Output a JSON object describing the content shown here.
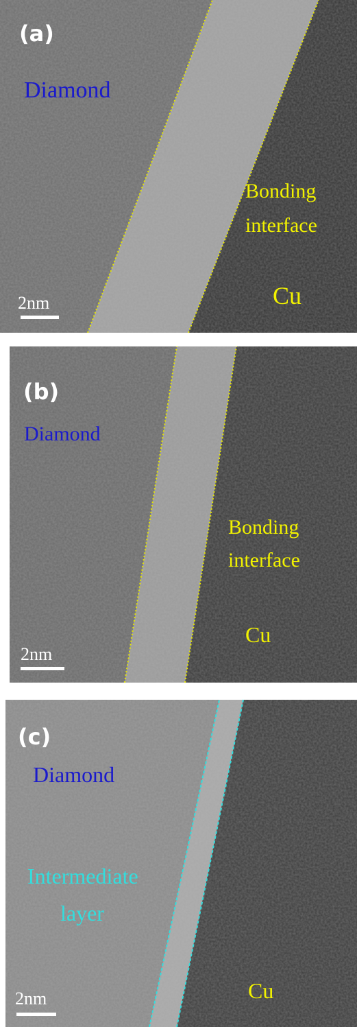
{
  "panels": [
    {
      "label": "(a)",
      "left_material": "Diamond",
      "interface_label": [
        "Bonding",
        "interface"
      ],
      "right_material": "Cu",
      "scale_bar": "2nm"
    },
    {
      "label": "(b)",
      "left_material": "Diamond",
      "interface_label": [
        "Bonding",
        "interface"
      ],
      "right_material": "Cu",
      "scale_bar": "2nm"
    },
    {
      "label": "(c)",
      "left_material": "Diamond",
      "interface_label": [
        "Intermediate",
        "layer"
      ],
      "right_material": "Cu",
      "scale_bar": "2nm"
    }
  ]
}
